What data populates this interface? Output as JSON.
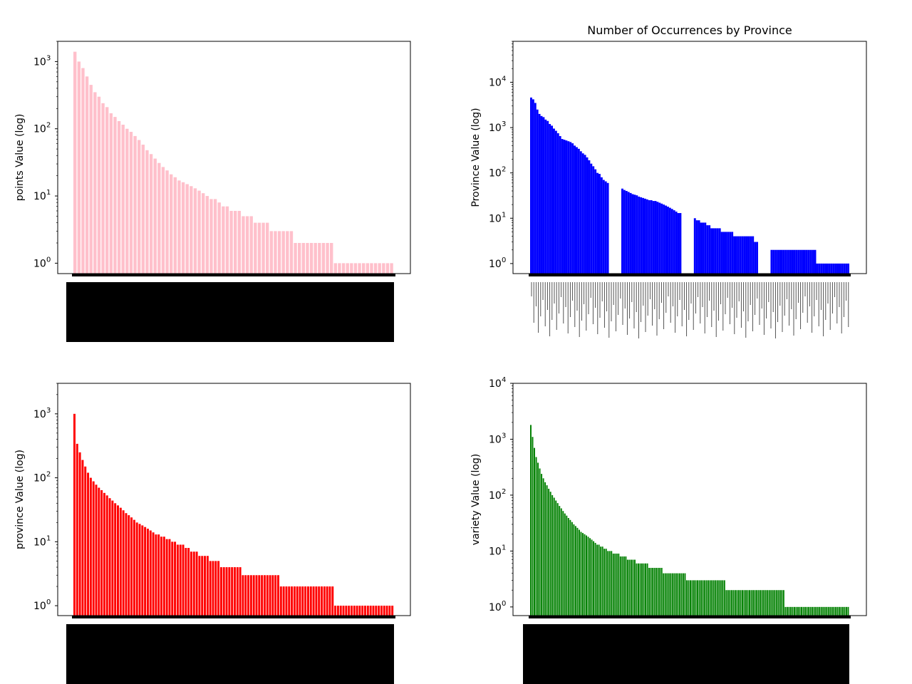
{
  "chart_data": [
    {
      "type": "bar",
      "title": "",
      "xlabel": "",
      "ylabel": "points Value (log)",
      "yscale": "log",
      "ylim": [
        0.7,
        2000
      ],
      "ytick_labels": [
        "10",
        "10",
        "10",
        "10"
      ],
      "ytick_exponents": [
        "0",
        "1",
        "2",
        "3"
      ],
      "color": "#ffc0cb",
      "grid": false,
      "categories_description": "dense rotated category labels rendered illegible (black block)",
      "values": [
        1400,
        1000,
        800,
        600,
        450,
        350,
        300,
        240,
        210,
        170,
        150,
        130,
        115,
        100,
        90,
        78,
        68,
        58,
        48,
        42,
        36,
        31,
        27,
        24,
        21,
        19,
        17,
        16,
        15,
        14,
        13,
        12,
        11,
        10,
        9,
        9,
        8,
        7,
        7,
        6,
        6,
        6,
        5,
        5,
        5,
        4,
        4,
        4,
        4,
        3,
        3,
        3,
        3,
        3,
        3,
        2,
        2,
        2,
        2,
        2,
        2,
        2,
        2,
        2,
        2,
        1,
        1,
        1,
        1,
        1,
        1,
        1,
        1,
        1,
        1,
        1,
        1,
        1,
        1,
        1
      ]
    },
    {
      "type": "bar",
      "title": "Number of Occurrences by Province",
      "xlabel": "",
      "ylabel": "Province Value (log)",
      "yscale": "log",
      "ylim": [
        0.6,
        80000
      ],
      "ytick_labels": [
        "10",
        "10",
        "10",
        "10",
        "10"
      ],
      "ytick_exponents": [
        "0",
        "1",
        "2",
        "3",
        "4"
      ],
      "color": "#0000ff",
      "grid": false,
      "categories_description": "many rotated province names overlapping (partly legible: Mendoza, Sicilia, Veneto, Valais, Rioja, Österreich, Portugal, Pays Nantais, Mosel, Languedoc)",
      "values": [
        4600,
        4200,
        3500,
        2500,
        2000,
        1800,
        1700,
        1500,
        1400,
        1200,
        1100,
        950,
        850,
        750,
        650,
        560,
        540,
        520,
        500,
        480,
        450,
        400,
        370,
        340,
        300,
        270,
        250,
        220,
        190,
        160,
        140,
        120,
        100,
        95,
        80,
        70,
        65,
        60,
        0,
        0,
        0,
        0,
        0,
        0,
        45,
        42,
        40,
        38,
        36,
        34,
        33,
        32,
        30,
        29,
        28,
        27,
        26,
        25,
        25,
        24,
        24,
        23,
        22,
        21,
        20,
        19,
        18,
        17,
        16,
        15,
        14,
        13,
        13,
        0,
        0,
        0,
        0,
        0,
        0,
        10,
        9,
        9,
        8,
        8,
        8,
        7,
        7,
        6,
        6,
        6,
        6,
        6,
        5,
        5,
        5,
        5,
        5,
        5,
        4,
        4,
        4,
        4,
        4,
        4,
        4,
        4,
        4,
        4,
        3,
        3,
        0,
        0,
        0,
        0,
        0,
        0,
        2,
        2,
        2,
        2,
        2,
        2,
        2,
        2,
        2,
        2,
        2,
        2,
        2,
        2,
        2,
        2,
        2,
        2,
        2,
        2,
        2,
        2,
        1,
        1,
        1,
        1,
        1,
        1,
        1,
        1,
        1,
        1,
        1,
        1,
        1,
        1,
        1,
        1
      ]
    },
    {
      "type": "bar",
      "title": "",
      "xlabel": "",
      "ylabel": "province Value (log)",
      "yscale": "log",
      "ylim": [
        0.7,
        3000
      ],
      "ytick_labels": [
        "10",
        "10",
        "10",
        "10"
      ],
      "ytick_exponents": [
        "0",
        "1",
        "2",
        "3"
      ],
      "color": "#ff0000",
      "grid": false,
      "categories_description": "dense rotated category labels rendered illegible (black block)",
      "values": [
        1000,
        340,
        250,
        190,
        150,
        120,
        100,
        88,
        78,
        70,
        64,
        58,
        53,
        48,
        44,
        40,
        37,
        34,
        31,
        28,
        26,
        24,
        22,
        20,
        19,
        18,
        17,
        16,
        15,
        14,
        13,
        13,
        12,
        12,
        11,
        11,
        10,
        10,
        9,
        9,
        9,
        8,
        8,
        7,
        7,
        7,
        6,
        6,
        6,
        6,
        5,
        5,
        5,
        5,
        4,
        4,
        4,
        4,
        4,
        4,
        4,
        4,
        3,
        3,
        3,
        3,
        3,
        3,
        3,
        3,
        3,
        3,
        3,
        3,
        3,
        3,
        2,
        2,
        2,
        2,
        2,
        2,
        2,
        2,
        2,
        2,
        2,
        2,
        2,
        2,
        2,
        2,
        2,
        2,
        2,
        2,
        1,
        1,
        1,
        1,
        1,
        1,
        1,
        1,
        1,
        1,
        1,
        1,
        1,
        1,
        1,
        1,
        1,
        1,
        1,
        1,
        1,
        1
      ]
    },
    {
      "type": "bar",
      "title": "",
      "xlabel": "",
      "ylabel": "variety Value (log)",
      "yscale": "log",
      "ylim": [
        0.7,
        10000
      ],
      "ytick_labels": [
        "10",
        "10",
        "10",
        "10",
        "10"
      ],
      "ytick_exponents": [
        "0",
        "1",
        "2",
        "3",
        "4"
      ],
      "color": "#008000",
      "grid": false,
      "categories_description": "dense rotated category labels rendered illegible (black block)",
      "values": [
        1800,
        1100,
        700,
        480,
        380,
        300,
        240,
        200,
        170,
        150,
        130,
        115,
        100,
        90,
        80,
        72,
        64,
        58,
        52,
        47,
        43,
        39,
        36,
        33,
        30,
        28,
        26,
        24,
        22,
        21,
        20,
        19,
        18,
        17,
        16,
        15,
        14,
        13,
        13,
        12,
        12,
        11,
        11,
        10,
        10,
        10,
        9,
        9,
        9,
        9,
        8,
        8,
        8,
        8,
        7,
        7,
        7,
        7,
        7,
        6,
        6,
        6,
        6,
        6,
        6,
        6,
        5,
        5,
        5,
        5,
        5,
        5,
        5,
        5,
        4,
        4,
        4,
        4,
        4,
        4,
        4,
        4,
        4,
        4,
        4,
        4,
        4,
        3,
        3,
        3,
        3,
        3,
        3,
        3,
        3,
        3,
        3,
        3,
        3,
        3,
        3,
        3,
        3,
        3,
        3,
        3,
        3,
        3,
        3,
        2,
        2,
        2,
        2,
        2,
        2,
        2,
        2,
        2,
        2,
        2,
        2,
        2,
        2,
        2,
        2,
        2,
        2,
        2,
        2,
        2,
        2,
        2,
        2,
        2,
        2,
        2,
        2,
        2,
        2,
        2,
        2,
        2,
        1,
        1,
        1,
        1,
        1,
        1,
        1,
        1,
        1,
        1,
        1,
        1,
        1,
        1,
        1,
        1,
        1,
        1,
        1,
        1,
        1,
        1,
        1,
        1,
        1,
        1,
        1,
        1,
        1,
        1,
        1,
        1,
        1,
        1,
        1,
        1
      ]
    }
  ]
}
